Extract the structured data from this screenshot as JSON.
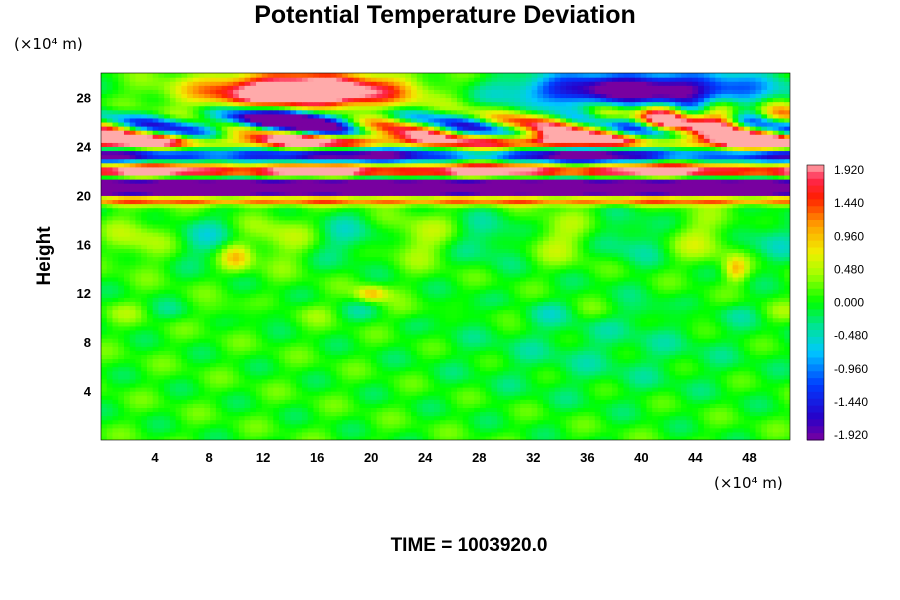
{
  "chart_data": {
    "type": "heatmap",
    "title": "Potential Temperature Deviation",
    "ylabel": "Height",
    "xlabel": "",
    "y_unit_label": "(×10⁴ m)",
    "x_unit_label": "(×10⁴ m)",
    "xlim": [
      0,
      51
    ],
    "ylim": [
      0,
      30
    ],
    "x_ticks": [
      "4",
      "8",
      "12",
      "16",
      "20",
      "24",
      "28",
      "32",
      "36",
      "40",
      "44",
      "48"
    ],
    "y_ticks": [
      "4",
      "8",
      "12",
      "16",
      "20",
      "24",
      "28"
    ],
    "colorbar": {
      "min": -1.92,
      "max": 1.92,
      "labels": [
        "1.920",
        "1.440",
        "0.960",
        "0.480",
        "0.000",
        "-0.480",
        "-0.960",
        "-1.440",
        "-1.920"
      ]
    },
    "grid": false,
    "time_label": "TIME = 1003920.0"
  }
}
